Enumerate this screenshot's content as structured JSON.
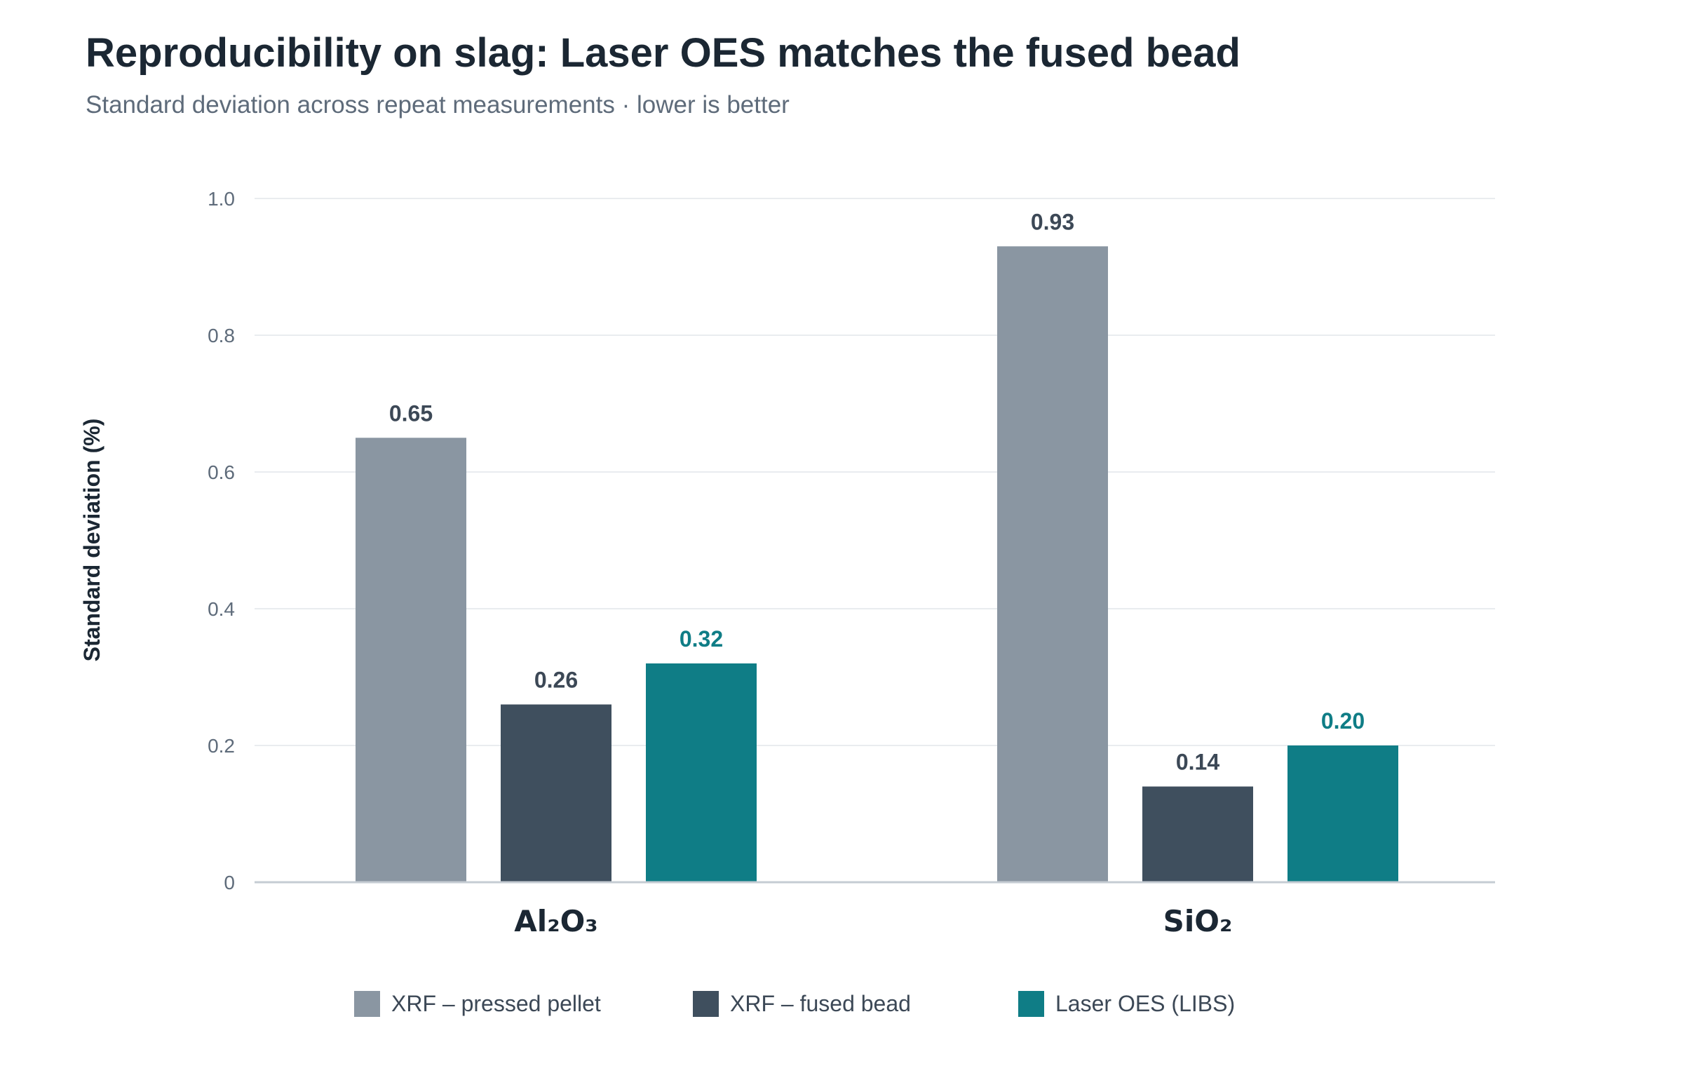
{
  "title": "Reproducibility on slag: Laser OES matches the fused bead",
  "subtitle": "Standard deviation across repeat measurements · lower is better",
  "colors": {
    "pressed_pellet": "#8a96a2",
    "fused_bead": "#3f4f5e",
    "laser_oes": "#0f7d86",
    "title": "#1b2733",
    "grid": "#e9ecef",
    "axis": "#c5ccd3"
  },
  "chart_data": {
    "type": "bar",
    "categories": [
      "Al₂O₃",
      "SiO₂"
    ],
    "series": [
      {
        "name": "XRF – pressed pellet",
        "values": [
          0.65,
          0.93
        ],
        "labels": [
          "0.65",
          "0.93"
        ]
      },
      {
        "name": "XRF – fused bead",
        "values": [
          0.26,
          0.14
        ],
        "labels": [
          "0.26",
          "0.14"
        ]
      },
      {
        "name": "Laser OES (LIBS)",
        "values": [
          0.32,
          0.2
        ],
        "labels": [
          "0.32",
          "0.20"
        ]
      }
    ],
    "title": "Reproducibility on slag: Laser OES matches the fused bead",
    "subtitle": "Standard deviation across repeat measurements · lower is better",
    "xlabel": "",
    "ylabel": "Standard deviation (%)",
    "ylim": [
      0,
      1.0
    ],
    "yticks": [
      0,
      0.2,
      0.4,
      0.6,
      0.8,
      1.0
    ],
    "ytick_labels": [
      "0",
      "0.2",
      "0.4",
      "0.6",
      "0.8",
      "1.0"
    ],
    "grid": true,
    "legend": "bottom"
  }
}
